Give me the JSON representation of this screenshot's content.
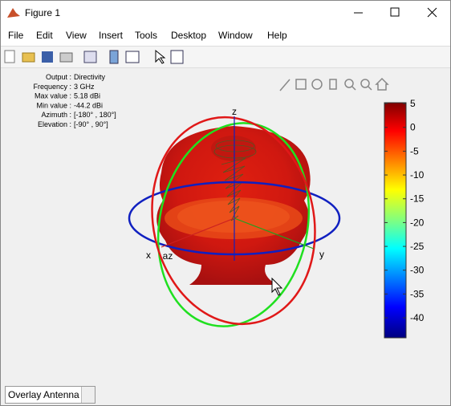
{
  "window": {
    "title": "Figure 1"
  },
  "menu": [
    "File",
    "Edit",
    "View",
    "Insert",
    "Tools",
    "Desktop",
    "Window",
    "Help"
  ],
  "info": [
    {
      "label": "Output :",
      "value": "Directivity"
    },
    {
      "label": "Frequency :",
      "value": "3 GHz"
    },
    {
      "label": "Max value :",
      "value": "5.18 dBi"
    },
    {
      "label": "Min value :",
      "value": "-44.2 dBi"
    },
    {
      "label": "Azimuth :",
      "value": "[-180° , 180°]"
    },
    {
      "label": "Elevation :",
      "value": "[-90° , 90°]"
    }
  ],
  "axes_labels": {
    "x": "x",
    "y": "y",
    "z": "z",
    "az": "az"
  },
  "colorbar": {
    "lim": [
      -44.2,
      5.18
    ],
    "ticks": [
      5,
      0,
      -5,
      -10,
      -15,
      -20,
      -25,
      -30,
      -35,
      -40
    ]
  },
  "dropdown": {
    "value": "Overlay Antenna"
  }
}
